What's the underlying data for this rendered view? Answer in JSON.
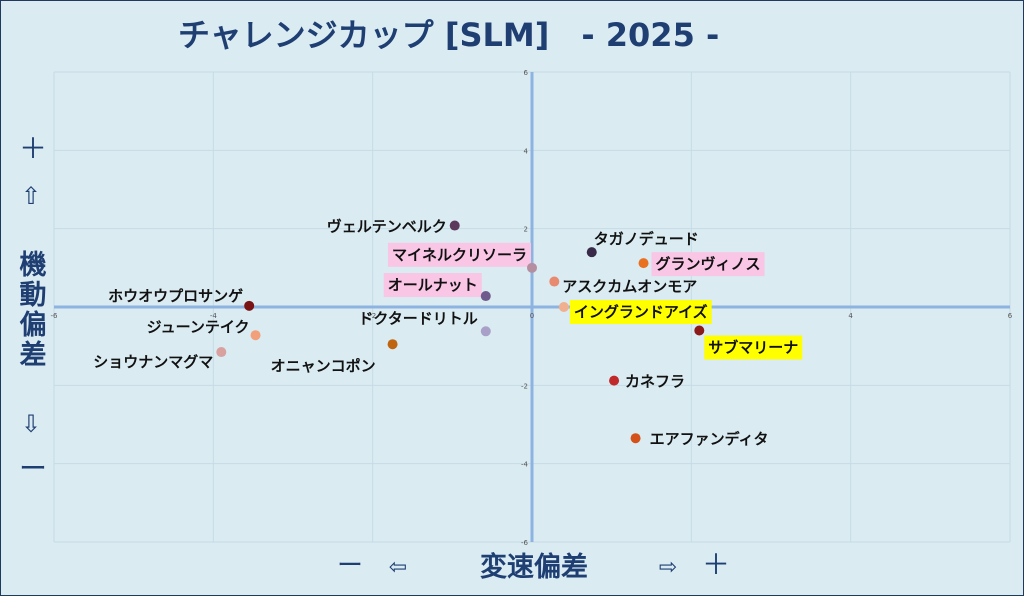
{
  "chart_data": {
    "type": "scatter",
    "title": "チャレンジカップ [SLM]　- 2025 -",
    "xlabel": "変速偏差",
    "ylabel": "機動偏差",
    "xlim": [
      -6,
      6
    ],
    "ylim": [
      -6,
      6
    ],
    "x_ticks": [
      -6,
      -4,
      -2,
      0,
      2,
      4,
      6
    ],
    "y_ticks": [
      -6,
      -4,
      -2,
      0,
      2,
      4,
      6
    ],
    "grid": true,
    "y_axis_markers": {
      "plus": "＋",
      "up_arrow": "⇧",
      "down_arrow": "⇩",
      "minus": "ー"
    },
    "x_axis_markers": {
      "minus": "ー",
      "left_arrow": "⇦",
      "right_arrow": "⇨",
      "plus": "＋"
    },
    "points": [
      {
        "name": "ヴェルテンベルク",
        "x": -0.97,
        "y": 2.08,
        "color": "#5c3a5c",
        "highlight": null
      },
      {
        "name": "マイネルクリソーラ",
        "x": 0.0,
        "y": 1.0,
        "color": "#b58fa0",
        "highlight": "#f9c6e6"
      },
      {
        "name": "オールナット",
        "x": -0.58,
        "y": 0.28,
        "color": "#6f5a8c",
        "highlight": "#f9c6e6"
      },
      {
        "name": "ドクタードリトル",
        "x": -0.58,
        "y": -0.62,
        "color": "#a8a0c8",
        "highlight": null
      },
      {
        "name": "オニャンコポン",
        "x": -1.75,
        "y": -0.95,
        "color": "#c0650f",
        "highlight": null
      },
      {
        "name": "ホウオウプロサンゲ",
        "x": -3.55,
        "y": 0.03,
        "color": "#7a1414",
        "highlight": null
      },
      {
        "name": "ジューンテイク",
        "x": -3.47,
        "y": -0.72,
        "color": "#f2a07a",
        "highlight": null
      },
      {
        "name": "ショウナンマグマ",
        "x": -3.9,
        "y": -1.15,
        "color": "#d9a0a0",
        "highlight": null
      },
      {
        "name": "タガノデュード",
        "x": 0.75,
        "y": 1.4,
        "color": "#3a2a4a",
        "highlight": null
      },
      {
        "name": "グランヴィノス",
        "x": 1.4,
        "y": 1.12,
        "color": "#e87020",
        "highlight": "#f9c6e6"
      },
      {
        "name": "アスクカムオンモア",
        "x": 0.28,
        "y": 0.65,
        "color": "#e88a70",
        "highlight": null
      },
      {
        "name": "イングランドアイズ",
        "x": 0.4,
        "y": 0.0,
        "color": "#f0b090",
        "highlight": "#ffff00"
      },
      {
        "name": "サブマリーナ",
        "x": 2.1,
        "y": -0.6,
        "color": "#8b1a1a",
        "highlight": "#ffff00"
      },
      {
        "name": "カネフラ",
        "x": 1.03,
        "y": -1.88,
        "color": "#c0282a",
        "highlight": null
      },
      {
        "name": "エアファンディタ",
        "x": 1.3,
        "y": -3.35,
        "color": "#d4521a",
        "highlight": null
      }
    ]
  }
}
